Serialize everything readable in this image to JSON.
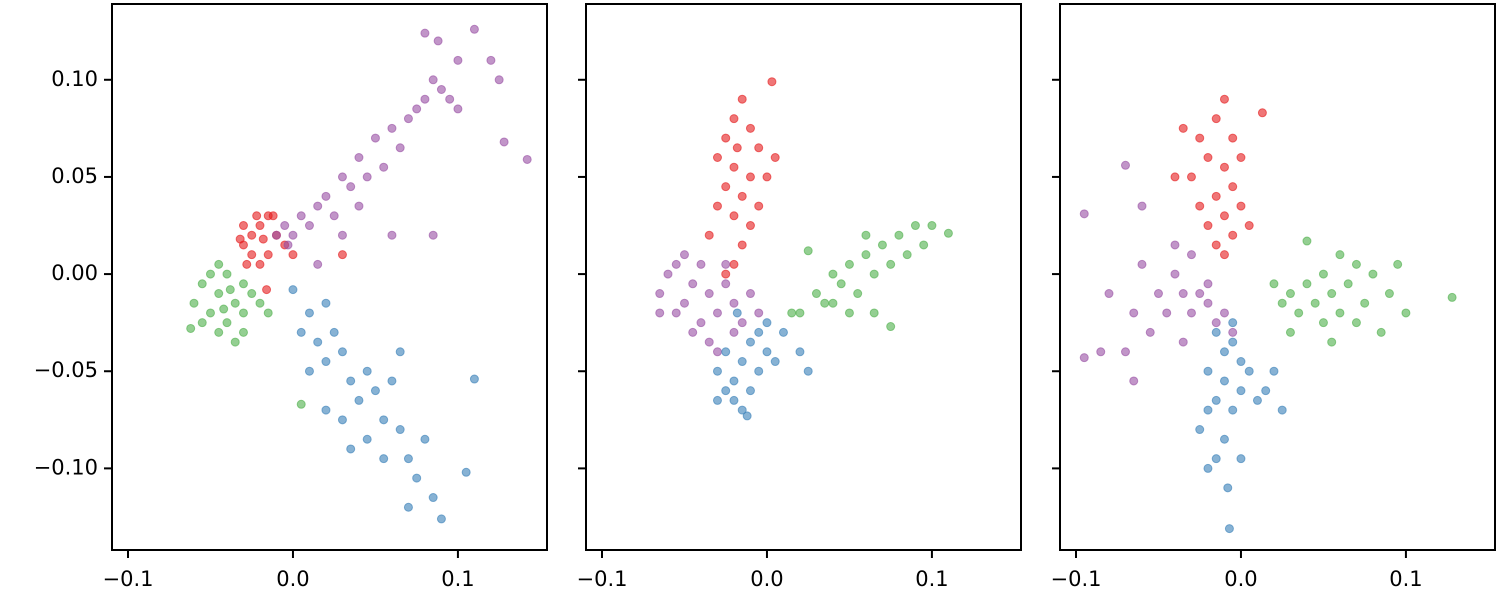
{
  "chart_data": [
    {
      "type": "scatter",
      "xlim": [
        -0.1097,
        0.154
      ],
      "ylim": [
        -0.142,
        0.139
      ],
      "xticks": [
        {
          "value": -0.1,
          "label": "−0.1"
        },
        {
          "value": 0,
          "label": "0.0"
        },
        {
          "value": 0.1,
          "label": "0.1"
        }
      ],
      "yticks": [
        {
          "value": -0.1,
          "label": "−0.10"
        },
        {
          "value": -0.05,
          "label": "−0.05"
        },
        {
          "value": 0,
          "label": "0.00"
        },
        {
          "value": 0.05,
          "label": "0.05"
        },
        {
          "value": 0.1,
          "label": "0.10"
        }
      ],
      "show_ytick_labels": true,
      "series": [
        {
          "color": "#377eb8",
          "x": [
            0.0,
            0.01,
            0.02,
            0.005,
            0.015,
            0.025,
            0.02,
            0.03,
            0.01,
            0.035,
            0.045,
            0.04,
            0.05,
            0.06,
            0.055,
            0.065,
            0.03,
            0.045,
            0.07,
            0.08,
            0.075,
            0.085,
            0.09,
            0.105,
            0.11,
            0.02,
            0.065,
            0.035,
            0.055,
            0.07
          ],
          "y": [
            -0.008,
            -0.02,
            -0.015,
            -0.03,
            -0.035,
            -0.03,
            -0.045,
            -0.04,
            -0.05,
            -0.055,
            -0.05,
            -0.065,
            -0.06,
            -0.055,
            -0.075,
            -0.08,
            -0.075,
            -0.085,
            -0.095,
            -0.085,
            -0.105,
            -0.115,
            -0.126,
            -0.102,
            -0.054,
            -0.07,
            -0.04,
            -0.09,
            -0.095,
            -0.12
          ]
        },
        {
          "color": "#4daf4a",
          "x": [
            -0.06,
            -0.055,
            -0.05,
            -0.045,
            -0.04,
            -0.035,
            -0.03,
            -0.04,
            -0.045,
            -0.035,
            -0.03,
            -0.025,
            -0.05,
            -0.038,
            -0.042,
            -0.062,
            -0.02,
            -0.03,
            -0.045,
            0.005,
            -0.015,
            -0.055
          ],
          "y": [
            -0.015,
            -0.005,
            -0.02,
            -0.01,
            0.0,
            -0.015,
            -0.005,
            -0.025,
            -0.03,
            -0.035,
            -0.02,
            -0.01,
            0.0,
            -0.008,
            -0.018,
            -0.028,
            -0.015,
            -0.03,
            0.005,
            -0.067,
            -0.02,
            -0.025
          ]
        },
        {
          "color": "#e41a1c",
          "x": [
            -0.03,
            -0.025,
            -0.02,
            -0.015,
            -0.025,
            -0.03,
            -0.02,
            -0.01,
            -0.015,
            -0.005,
            -0.028,
            -0.018,
            -0.012,
            -0.022,
            -0.016,
            0.0,
            0.03,
            -0.032
          ],
          "y": [
            0.015,
            0.02,
            0.025,
            0.01,
            0.01,
            0.025,
            0.005,
            0.02,
            0.03,
            0.015,
            0.005,
            0.018,
            0.03,
            0.03,
            -0.008,
            0.01,
            0.01,
            0.018
          ]
        },
        {
          "color": "#984ea3",
          "x": [
            -0.01,
            -0.005,
            0.0,
            0.005,
            -0.003,
            0.01,
            0.015,
            0.02,
            0.025,
            0.03,
            0.035,
            0.04,
            0.045,
            0.05,
            0.055,
            0.06,
            0.065,
            0.07,
            0.075,
            0.08,
            0.085,
            0.09,
            0.095,
            0.1,
            0.11,
            0.12,
            0.125,
            0.128,
            0.142,
            0.08,
            0.088,
            0.06,
            0.085,
            0.03,
            0.015,
            0.04,
            0.1
          ],
          "y": [
            0.02,
            0.025,
            0.02,
            0.03,
            0.015,
            0.025,
            0.035,
            0.04,
            0.03,
            0.05,
            0.045,
            0.06,
            0.05,
            0.07,
            0.055,
            0.075,
            0.065,
            0.08,
            0.085,
            0.09,
            0.1,
            0.095,
            0.09,
            0.085,
            0.126,
            0.11,
            0.1,
            0.068,
            0.059,
            0.124,
            0.12,
            0.02,
            0.02,
            0.02,
            0.005,
            0.035,
            0.11
          ]
        }
      ]
    },
    {
      "type": "scatter",
      "xlim": [
        -0.1097,
        0.154
      ],
      "ylim": [
        -0.142,
        0.139
      ],
      "xticks": [
        {
          "value": -0.1,
          "label": "−0.1"
        },
        {
          "value": 0,
          "label": "0.0"
        },
        {
          "value": 0.1,
          "label": "0.1"
        }
      ],
      "yticks": [
        -0.1,
        -0.05,
        0,
        0.05,
        0.1
      ],
      "show_ytick_labels": false,
      "series": [
        {
          "color": "#e41a1c",
          "x": [
            -0.03,
            -0.025,
            -0.02,
            -0.015,
            -0.01,
            -0.005,
            -0.02,
            -0.01,
            -0.025,
            -0.015,
            -0.005,
            -0.02,
            -0.03,
            -0.01,
            -0.015,
            -0.02,
            -0.035,
            0.0,
            0.003,
            -0.025,
            0.005,
            -0.018
          ],
          "y": [
            0.06,
            0.07,
            0.08,
            0.09,
            0.075,
            0.065,
            0.055,
            0.05,
            0.045,
            0.04,
            0.035,
            0.03,
            0.035,
            0.025,
            0.015,
            0.005,
            0.02,
            0.05,
            0.099,
            0.0,
            0.06,
            0.065
          ]
        },
        {
          "color": "#984ea3",
          "x": [
            -0.065,
            -0.06,
            -0.055,
            -0.05,
            -0.045,
            -0.04,
            -0.035,
            -0.03,
            -0.025,
            -0.02,
            -0.015,
            -0.01,
            -0.035,
            -0.04,
            -0.045,
            -0.03,
            -0.02,
            -0.055,
            -0.065,
            -0.05,
            -0.025,
            -0.005
          ],
          "y": [
            -0.01,
            0.0,
            -0.02,
            -0.015,
            -0.005,
            -0.025,
            -0.01,
            -0.02,
            -0.005,
            -0.015,
            -0.025,
            -0.01,
            -0.035,
            0.005,
            -0.03,
            -0.04,
            -0.03,
            0.005,
            -0.02,
            0.01,
            0.005,
            -0.02
          ]
        },
        {
          "color": "#4daf4a",
          "x": [
            0.02,
            0.03,
            0.035,
            0.04,
            0.045,
            0.05,
            0.055,
            0.06,
            0.065,
            0.07,
            0.075,
            0.08,
            0.085,
            0.09,
            0.1,
            0.11,
            0.05,
            0.065,
            0.075,
            0.04,
            0.015,
            0.025,
            0.06,
            0.095
          ],
          "y": [
            -0.02,
            -0.01,
            -0.015,
            0.0,
            -0.005,
            0.005,
            -0.01,
            0.01,
            0.0,
            0.015,
            0.005,
            0.02,
            0.01,
            0.025,
            0.025,
            0.021,
            -0.02,
            -0.02,
            -0.027,
            -0.015,
            -0.02,
            0.012,
            0.02,
            0.015
          ]
        },
        {
          "color": "#377eb8",
          "x": [
            -0.03,
            -0.025,
            -0.02,
            -0.015,
            -0.01,
            -0.005,
            0.0,
            -0.01,
            -0.02,
            -0.015,
            -0.025,
            -0.005,
            0.0,
            0.005,
            0.02,
            0.025,
            -0.03,
            0.01,
            -0.012,
            -0.018
          ],
          "y": [
            -0.05,
            -0.04,
            -0.055,
            -0.045,
            -0.035,
            -0.05,
            -0.04,
            -0.06,
            -0.065,
            -0.07,
            -0.06,
            -0.03,
            -0.025,
            -0.045,
            -0.04,
            -0.05,
            -0.065,
            -0.03,
            -0.073,
            -0.02
          ]
        }
      ]
    },
    {
      "type": "scatter",
      "xlim": [
        -0.1097,
        0.154
      ],
      "ylim": [
        -0.142,
        0.139
      ],
      "xticks": [
        {
          "value": -0.1,
          "label": "−0.1"
        },
        {
          "value": 0,
          "label": "0.0"
        },
        {
          "value": 0.1,
          "label": "0.1"
        }
      ],
      "yticks": [
        -0.1,
        -0.05,
        0,
        0.05,
        0.1
      ],
      "show_ytick_labels": false,
      "series": [
        {
          "color": "#e41a1c",
          "x": [
            -0.025,
            -0.02,
            -0.015,
            -0.01,
            -0.005,
            0.0,
            -0.015,
            -0.005,
            -0.01,
            -0.02,
            -0.025,
            -0.015,
            -0.01,
            -0.03,
            -0.035,
            0.0,
            0.005,
            -0.01,
            0.013,
            -0.04,
            -0.005
          ],
          "y": [
            0.035,
            0.025,
            0.04,
            0.03,
            0.02,
            0.035,
            0.015,
            0.045,
            0.055,
            0.06,
            0.07,
            0.08,
            0.09,
            0.05,
            0.075,
            0.06,
            0.025,
            0.01,
            0.083,
            0.05,
            0.07
          ]
        },
        {
          "color": "#984ea3",
          "x": [
            -0.05,
            -0.045,
            -0.04,
            -0.035,
            -0.03,
            -0.025,
            -0.02,
            -0.015,
            -0.01,
            -0.02,
            -0.055,
            -0.06,
            -0.065,
            -0.07,
            -0.06,
            -0.08,
            -0.095,
            -0.095,
            -0.085,
            -0.07,
            -0.065,
            -0.04,
            -0.03,
            -0.005,
            -0.035
          ],
          "y": [
            -0.01,
            -0.02,
            0.0,
            -0.01,
            -0.02,
            -0.01,
            -0.015,
            -0.025,
            -0.02,
            -0.005,
            -0.03,
            0.005,
            -0.02,
            0.056,
            0.035,
            -0.01,
            0.031,
            -0.043,
            -0.04,
            -0.04,
            -0.055,
            0.015,
            0.01,
            -0.03,
            -0.035
          ]
        },
        {
          "color": "#4daf4a",
          "x": [
            0.02,
            0.025,
            0.03,
            0.035,
            0.04,
            0.045,
            0.05,
            0.055,
            0.06,
            0.065,
            0.07,
            0.075,
            0.08,
            0.085,
            0.09,
            0.095,
            0.1,
            0.04,
            0.055,
            0.06,
            0.05,
            0.07,
            0.128,
            0.03
          ],
          "y": [
            -0.005,
            -0.015,
            -0.01,
            -0.02,
            -0.005,
            -0.015,
            0.0,
            -0.01,
            -0.02,
            -0.005,
            0.005,
            -0.015,
            0.0,
            -0.03,
            -0.01,
            0.005,
            -0.02,
            0.017,
            -0.035,
            0.01,
            -0.025,
            -0.025,
            -0.012,
            -0.03
          ]
        },
        {
          "color": "#377eb8",
          "x": [
            -0.015,
            -0.01,
            -0.005,
            0.0,
            -0.02,
            -0.01,
            0.0,
            -0.015,
            -0.005,
            0.005,
            -0.02,
            0.01,
            -0.025,
            0.015,
            -0.01,
            -0.015,
            -0.02,
            0.0,
            -0.008,
            -0.007,
            0.025,
            0.02,
            -0.005
          ],
          "y": [
            -0.03,
            -0.04,
            -0.035,
            -0.045,
            -0.05,
            -0.055,
            -0.06,
            -0.065,
            -0.07,
            -0.05,
            -0.07,
            -0.065,
            -0.08,
            -0.06,
            -0.085,
            -0.095,
            -0.1,
            -0.095,
            -0.11,
            -0.131,
            -0.07,
            -0.05,
            -0.025
          ]
        }
      ]
    }
  ]
}
